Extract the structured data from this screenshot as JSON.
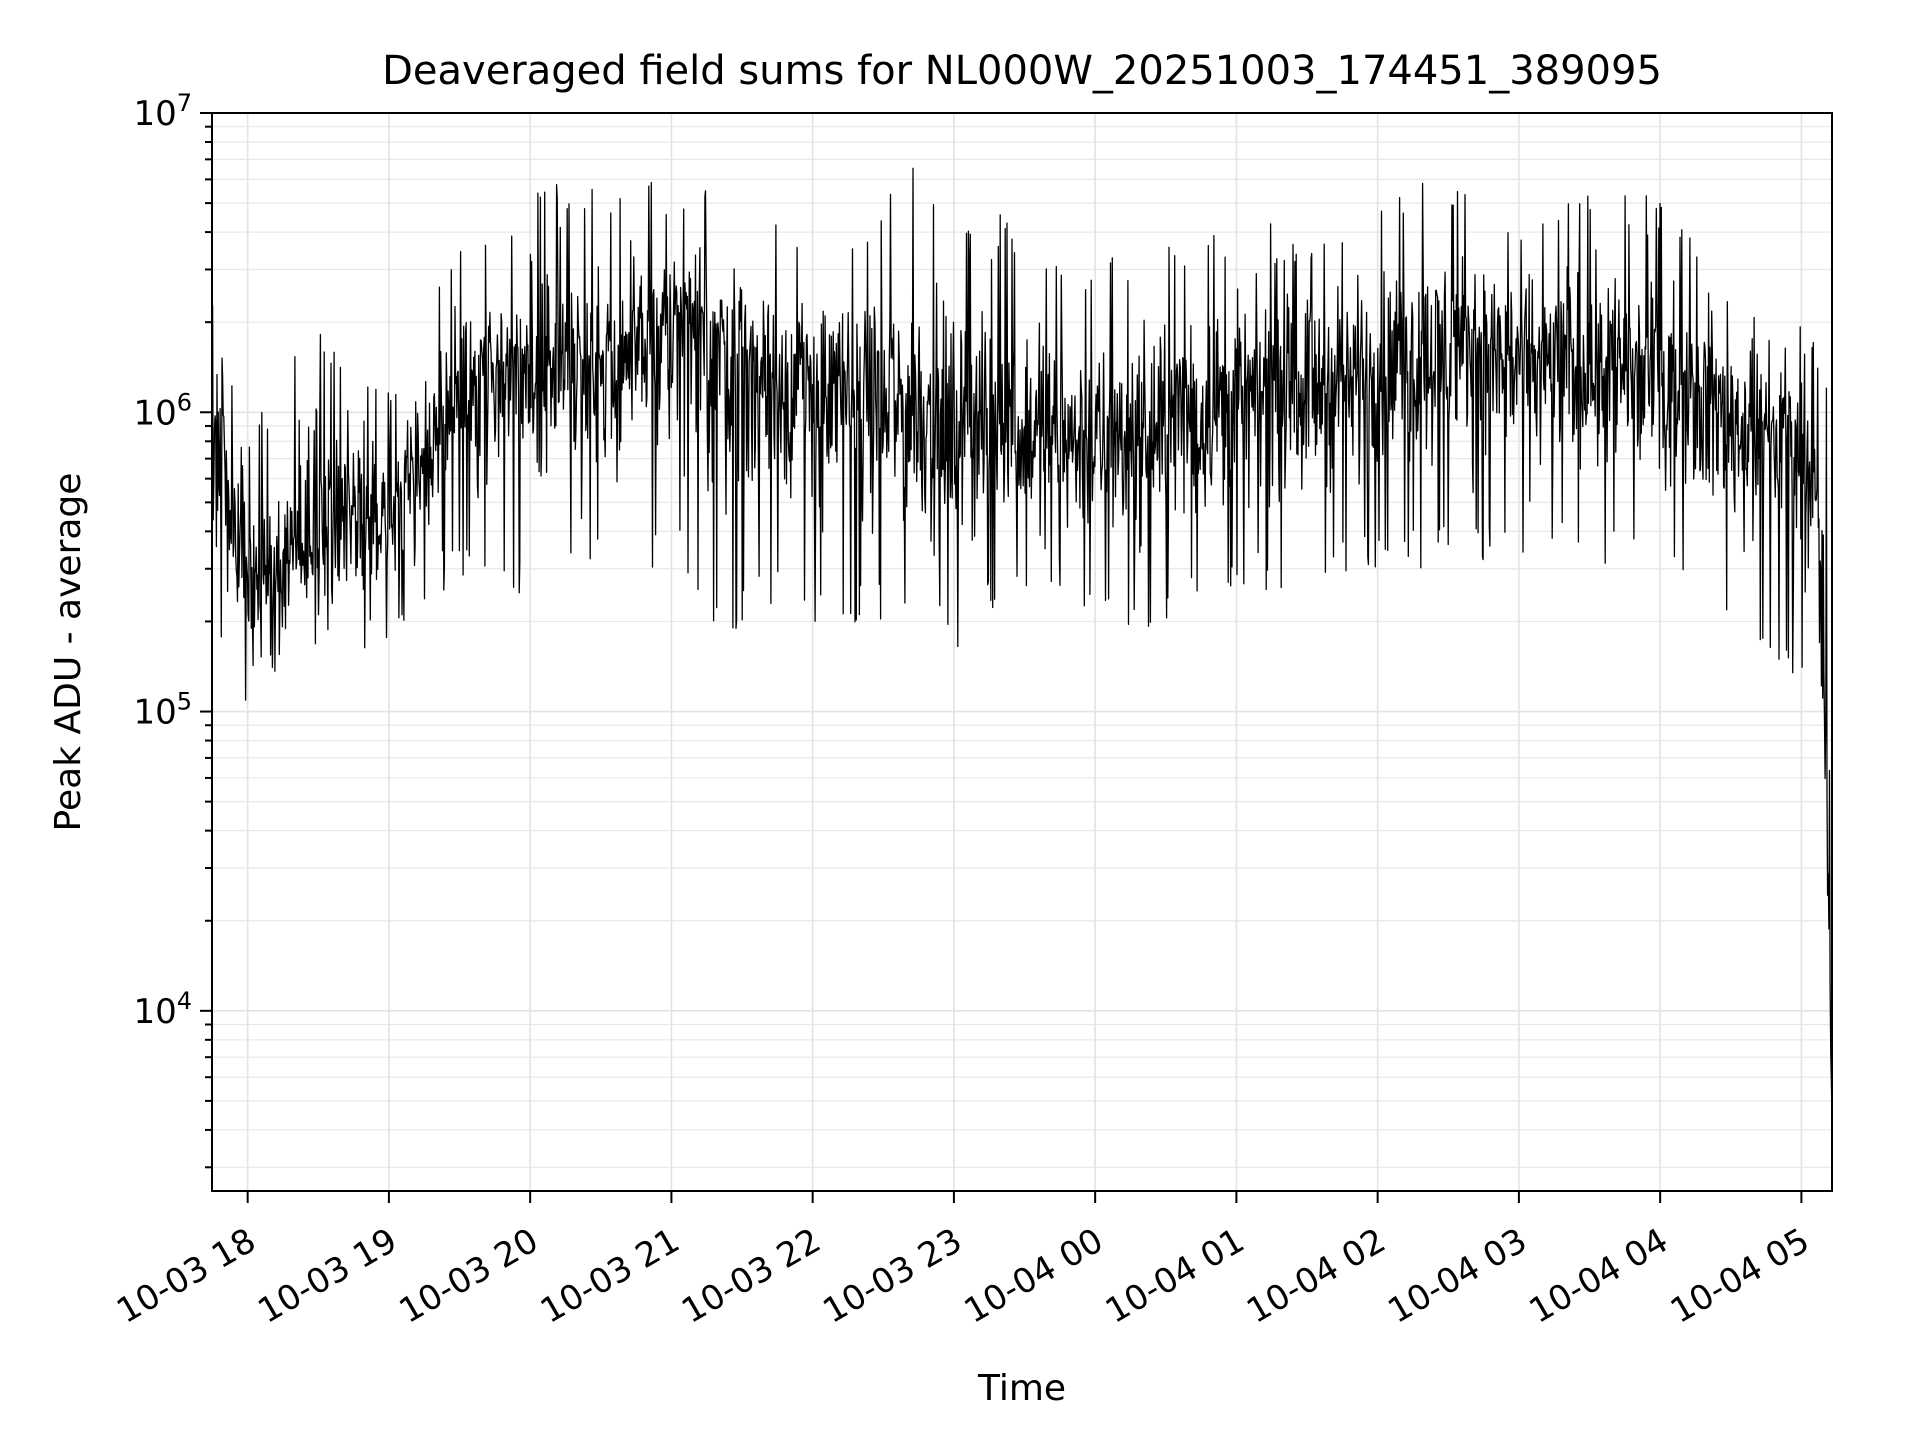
{
  "chart_data": {
    "type": "line",
    "title": "Deaveraged field sums for NL000W_20251003_174451_389095",
    "xlabel": "Time",
    "ylabel": "Peak ADU - average",
    "yscale": "log",
    "grid": "major and minor, light gray",
    "line_color": "#000000",
    "xlim": [
      "2025-10-03 17:44:51",
      "2025-10-04 05:13:00"
    ],
    "ylim": [
      2500,
      10000000
    ],
    "x_ticks": [
      {
        "value": "2025-10-03 18:00",
        "label": "10-03 18"
      },
      {
        "value": "2025-10-03 19:00",
        "label": "10-03 19"
      },
      {
        "value": "2025-10-03 20:00",
        "label": "10-03 20"
      },
      {
        "value": "2025-10-03 21:00",
        "label": "10-03 21"
      },
      {
        "value": "2025-10-03 22:00",
        "label": "10-03 22"
      },
      {
        "value": "2025-10-03 23:00",
        "label": "10-03 23"
      },
      {
        "value": "2025-10-04 00:00",
        "label": "10-04 00"
      },
      {
        "value": "2025-10-04 01:00",
        "label": "10-04 01"
      },
      {
        "value": "2025-10-04 02:00",
        "label": "10-04 02"
      },
      {
        "value": "2025-10-04 03:00",
        "label": "10-04 03"
      },
      {
        "value": "2025-10-04 04:00",
        "label": "10-04 04"
      },
      {
        "value": "2025-10-04 05:00",
        "label": "10-04 05"
      }
    ],
    "y_ticks": [
      {
        "value": 10000,
        "base": "10",
        "exp": "4"
      },
      {
        "value": 100000,
        "base": "10",
        "exp": "5"
      },
      {
        "value": 1000000,
        "base": "10",
        "exp": "6"
      },
      {
        "value": 10000000,
        "base": "10",
        "exp": "7"
      }
    ],
    "x": [
      "2025-10-03 17:44:51",
      "2025-10-03 17:50",
      "2025-10-03 18:00",
      "2025-10-03 18:15",
      "2025-10-03 18:30",
      "2025-10-03 18:45",
      "2025-10-03 19:00",
      "2025-10-03 19:15",
      "2025-10-03 19:30",
      "2025-10-03 19:45",
      "2025-10-03 20:00",
      "2025-10-03 20:20",
      "2025-10-03 20:40",
      "2025-10-03 21:00",
      "2025-10-03 21:20",
      "2025-10-03 21:40",
      "2025-10-03 22:00",
      "2025-10-03 22:20",
      "2025-10-03 22:40",
      "2025-10-03 23:00",
      "2025-10-03 23:20",
      "2025-10-03 23:40",
      "2025-10-04 00:00",
      "2025-10-04 00:20",
      "2025-10-04 00:40",
      "2025-10-04 01:00",
      "2025-10-04 01:20",
      "2025-10-04 01:40",
      "2025-10-04 02:00",
      "2025-10-04 02:20",
      "2025-10-04 02:40",
      "2025-10-04 03:00",
      "2025-10-04 03:20",
      "2025-10-04 03:40",
      "2025-10-04 04:00",
      "2025-10-04 04:20",
      "2025-10-04 04:40",
      "2025-10-04 05:00",
      "2025-10-04 05:05",
      "2025-10-04 05:10",
      "2025-10-04 05:13"
    ],
    "y_typical": [
      1200000,
      600000,
      300000,
      320000,
      380000,
      450000,
      500000,
      700000,
      1200000,
      1400000,
      1300000,
      1500000,
      1600000,
      1900000,
      1700000,
      1400000,
      1200000,
      1100000,
      1000000,
      950000,
      900000,
      850000,
      750000,
      800000,
      1000000,
      1100000,
      1200000,
      1300000,
      1400000,
      1600000,
      1700000,
      1500000,
      1400000,
      1500000,
      1300000,
      1100000,
      900000,
      800000,
      700000,
      100000,
      4500
    ],
    "y_upper": [
      3000000,
      1600000,
      900000,
      1500000,
      2200000,
      1300000,
      1200000,
      2500000,
      4500000,
      4000000,
      6500000,
      5500000,
      6000000,
      6500000,
      6000000,
      4800000,
      4800000,
      4000000,
      7300000,
      4300000,
      4600000,
      4000000,
      3500000,
      3800000,
      4300000,
      4500000,
      4300000,
      4600000,
      5000000,
      5900000,
      5700000,
      5500000,
      5500000,
      6200000,
      5000000,
      3500000,
      2300000,
      2000000,
      2000000,
      1800000,
      600000
    ],
    "y_lower": [
      400000,
      120000,
      100000,
      140000,
      150000,
      140000,
      150000,
      220000,
      280000,
      300000,
      200000,
      350000,
      200000,
      350000,
      170000,
      220000,
      180000,
      200000,
      200000,
      150000,
      220000,
      250000,
      200000,
      180000,
      220000,
      250000,
      250000,
      280000,
      300000,
      300000,
      320000,
      300000,
      350000,
      300000,
      300000,
      250000,
      130000,
      130000,
      150000,
      20000,
      4500
    ]
  }
}
